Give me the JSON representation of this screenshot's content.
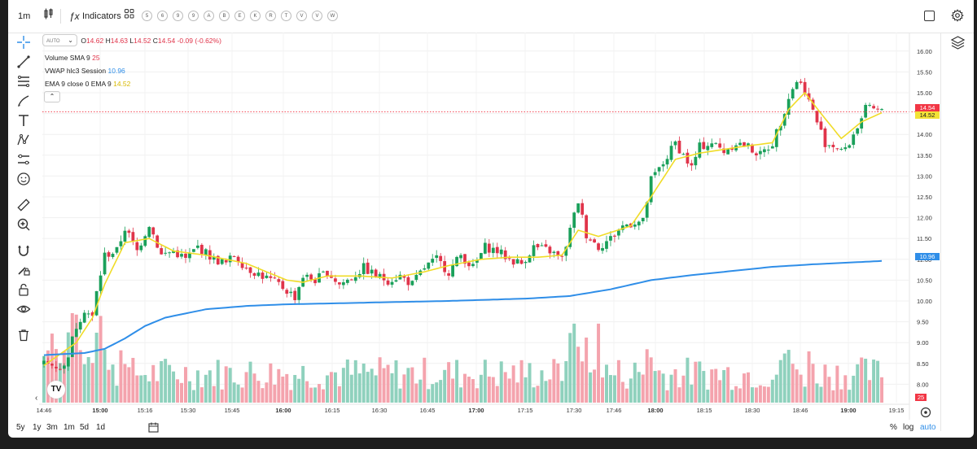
{
  "toolbar": {
    "interval": "1m",
    "indicators_label": "Indicators",
    "shortcuts": [
      "5",
      "6",
      "9",
      "9",
      "A",
      "B",
      "E",
      "K",
      "R",
      "T",
      "V",
      "V",
      "W"
    ]
  },
  "legend": {
    "symbol_button": "AUTO",
    "ohlc": {
      "o_label": "O",
      "o": "14.62",
      "h_label": "H",
      "h": "14.63",
      "l_label": "L",
      "l": "14.52",
      "c_label": "C",
      "c": "14.54",
      "change": "-0.09 (-0.62%)"
    },
    "volume_sma": {
      "label": "Volume SMA 9",
      "value": "25"
    },
    "vwap": {
      "label": "VWAP hlc3 Session",
      "value": "10.96"
    },
    "ema": {
      "label": "EMA 9 close 0 EMA 9",
      "value": "14.52"
    }
  },
  "price_axis": {
    "last_price": "14.54",
    "ema_price": "14.52",
    "vwap_price": "10.96",
    "volume_value": "25"
  },
  "bottom": {
    "ranges": [
      "5y",
      "1y",
      "3m",
      "1m",
      "5d",
      "1d"
    ],
    "percent_label": "%",
    "log_label": "log",
    "auto_label": "auto"
  },
  "colors": {
    "up": "#1aa05a",
    "down": "#e0344a",
    "vol_up": "#8fd1bd",
    "vol_down": "#f4a3ad",
    "vwap": "#2f8ee8",
    "ema": "#f0dc28",
    "last": "#f23645"
  },
  "chart_data": {
    "type": "candlestick",
    "x_ticks": [
      "14:46",
      "15:00",
      "15:16",
      "15:30",
      "15:45",
      "16:00",
      "16:15",
      "16:30",
      "16:45",
      "17:00",
      "17:15",
      "17:30",
      "17:46",
      "18:00",
      "18:15",
      "18:30",
      "18:46",
      "19:00",
      "19:15"
    ],
    "y_ticks": [
      8.0,
      8.5,
      9.0,
      9.5,
      10.0,
      10.5,
      11.0,
      11.5,
      12.0,
      12.5,
      13.0,
      13.5,
      14.0,
      14.5,
      15.0,
      15.5,
      16.0
    ],
    "ylim": [
      7.5,
      16.2
    ],
    "close_path": [
      [
        0,
        8.5
      ],
      [
        5,
        8.4
      ],
      [
        8,
        9.4
      ],
      [
        10,
        9.8
      ],
      [
        12,
        9.6
      ],
      [
        13,
        10.2
      ],
      [
        15,
        11.1
      ],
      [
        18,
        11.2
      ],
      [
        20,
        11.75
      ],
      [
        23,
        11.2
      ],
      [
        26,
        11.85
      ],
      [
        29,
        11.1
      ],
      [
        32,
        11.2
      ],
      [
        35,
        11.0
      ],
      [
        38,
        11.3
      ],
      [
        42,
        11.0
      ],
      [
        45,
        10.9
      ],
      [
        47,
        11.1
      ],
      [
        50,
        10.8
      ],
      [
        54,
        10.6
      ],
      [
        58,
        10.4
      ],
      [
        62,
        10.1
      ],
      [
        64,
        10.6
      ],
      [
        67,
        10.5
      ],
      [
        70,
        10.7
      ],
      [
        73,
        10.4
      ],
      [
        76,
        10.55
      ],
      [
        79,
        10.8
      ],
      [
        82,
        10.6
      ],
      [
        85,
        10.5
      ],
      [
        88,
        10.6
      ],
      [
        91,
        10.4
      ],
      [
        94,
        10.8
      ],
      [
        97,
        11.0
      ],
      [
        100,
        10.7
      ],
      [
        103,
        11.1
      ],
      [
        106,
        10.8
      ],
      [
        109,
        11.3
      ],
      [
        112,
        11.2
      ],
      [
        115,
        11.0
      ],
      [
        118,
        10.9
      ],
      [
        121,
        11.3
      ],
      [
        125,
        11.2
      ],
      [
        128,
        11.0
      ],
      [
        130,
        11.7
      ],
      [
        132,
        12.4
      ],
      [
        134,
        11.6
      ],
      [
        137,
        11.3
      ],
      [
        140,
        11.5
      ],
      [
        143,
        11.8
      ],
      [
        146,
        11.9
      ],
      [
        148,
        11.9
      ],
      [
        150,
        12.9
      ],
      [
        153,
        13.3
      ],
      [
        156,
        13.8
      ],
      [
        158,
        13.5
      ],
      [
        160,
        13.2
      ],
      [
        162,
        13.7
      ],
      [
        165,
        13.8
      ],
      [
        168,
        13.6
      ],
      [
        171,
        13.8
      ],
      [
        174,
        13.7
      ],
      [
        177,
        13.5
      ],
      [
        180,
        13.8
      ],
      [
        182,
        14.3
      ],
      [
        184,
        14.9
      ],
      [
        186,
        15.3
      ],
      [
        188,
        15.1
      ],
      [
        189,
        14.8
      ],
      [
        191,
        14.3
      ],
      [
        193,
        13.8
      ],
      [
        196,
        13.7
      ],
      [
        198,
        13.6
      ],
      [
        200,
        14.0
      ],
      [
        203,
        14.6
      ],
      [
        205,
        14.6
      ],
      [
        207,
        14.54
      ]
    ],
    "ema_path": [
      [
        0,
        8.45
      ],
      [
        8,
        9.0
      ],
      [
        12,
        9.6
      ],
      [
        15,
        10.4
      ],
      [
        20,
        11.4
      ],
      [
        26,
        11.5
      ],
      [
        32,
        11.2
      ],
      [
        40,
        11.1
      ],
      [
        50,
        10.9
      ],
      [
        60,
        10.5
      ],
      [
        64,
        10.45
      ],
      [
        70,
        10.6
      ],
      [
        78,
        10.6
      ],
      [
        86,
        10.55
      ],
      [
        94,
        10.7
      ],
      [
        100,
        10.85
      ],
      [
        108,
        11.0
      ],
      [
        115,
        11.05
      ],
      [
        122,
        11.05
      ],
      [
        128,
        11.1
      ],
      [
        132,
        11.7
      ],
      [
        137,
        11.55
      ],
      [
        145,
        11.8
      ],
      [
        150,
        12.5
      ],
      [
        156,
        13.4
      ],
      [
        162,
        13.55
      ],
      [
        172,
        13.7
      ],
      [
        180,
        13.8
      ],
      [
        184,
        14.6
      ],
      [
        188,
        15.0
      ],
      [
        192,
        14.5
      ],
      [
        197,
        13.9
      ],
      [
        202,
        14.3
      ],
      [
        207,
        14.52
      ]
    ],
    "vwap_path": [
      [
        0,
        8.7
      ],
      [
        10,
        8.75
      ],
      [
        15,
        8.85
      ],
      [
        20,
        9.1
      ],
      [
        25,
        9.4
      ],
      [
        30,
        9.6
      ],
      [
        40,
        9.8
      ],
      [
        50,
        9.88
      ],
      [
        60,
        9.92
      ],
      [
        80,
        9.96
      ],
      [
        100,
        10.0
      ],
      [
        120,
        10.06
      ],
      [
        130,
        10.12
      ],
      [
        140,
        10.28
      ],
      [
        150,
        10.5
      ],
      [
        160,
        10.62
      ],
      [
        170,
        10.72
      ],
      [
        180,
        10.82
      ],
      [
        190,
        10.88
      ],
      [
        207,
        10.96
      ]
    ],
    "volume_max": 145
  }
}
